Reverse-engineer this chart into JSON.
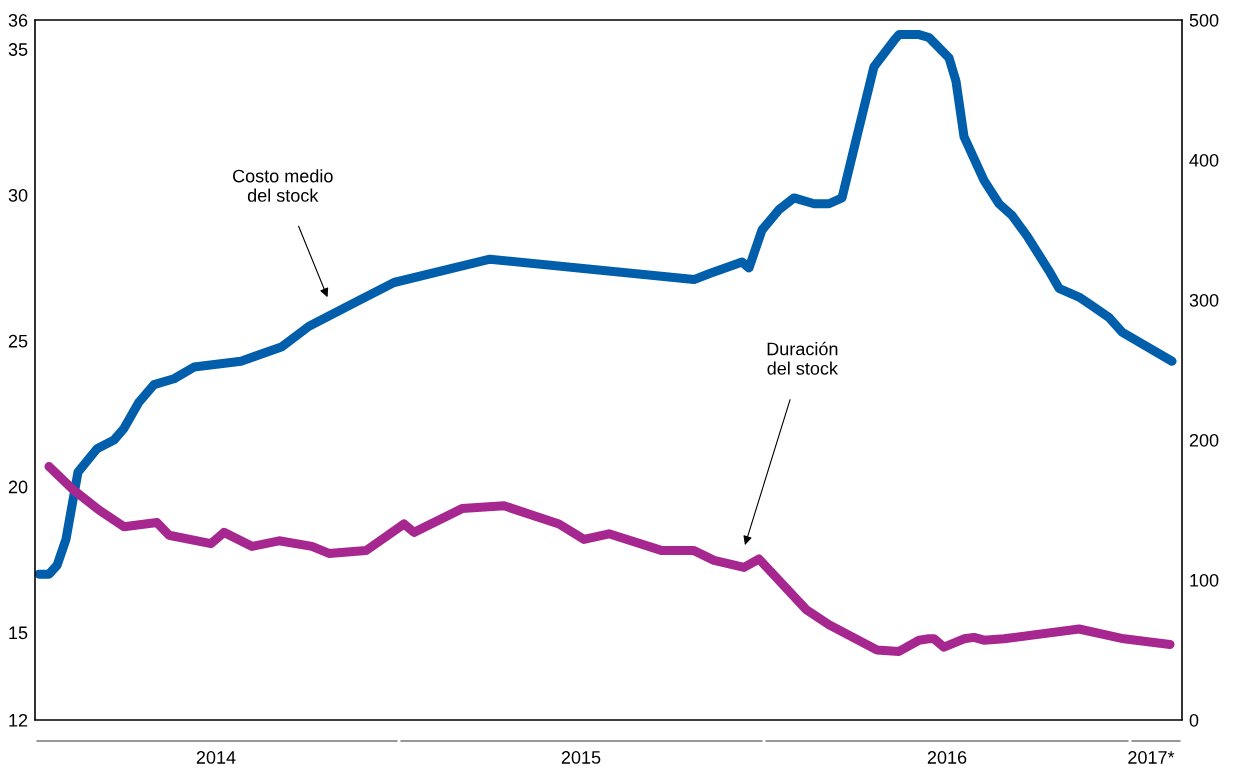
{
  "chart_data": {
    "type": "line",
    "xlim": [
      "2014-01-02",
      "2017-02-22"
    ],
    "xticks": [
      {
        "value": "2014-07-02",
        "label": "2014"
      },
      {
        "value": "2015-07-02",
        "label": "2015"
      },
      {
        "value": "2016-07-02",
        "label": "2016"
      },
      {
        "value": "2017-01-22",
        "label": "2017*"
      }
    ],
    "ylim": [
      12,
      36
    ],
    "yticks": [
      12,
      15,
      20,
      25,
      30,
      35,
      36
    ],
    "y2lim": [
      0,
      500
    ],
    "y2ticks": [
      0,
      100,
      200,
      300,
      400,
      500
    ],
    "grid": false,
    "legend": false,
    "marker": "none",
    "line_style": "solid",
    "series": [
      {
        "color": "#005eaa",
        "x": [
          "2014-01-06",
          "2014-01-16",
          "2014-01-24",
          "2014-02-02",
          "2014-02-14",
          "2014-03-05",
          "2014-03-22",
          "2014-04-01",
          "2014-04-16",
          "2014-05-01",
          "2014-05-21",
          "2014-06-10",
          "2014-07-27",
          "2014-09-06",
          "2014-10-03",
          "2014-11-17",
          "2014-12-27",
          "2015-04-02",
          "2015-10-23",
          "2015-11-07",
          "2015-12-10",
          "2015-12-17",
          "2015-12-30",
          "2016-01-16",
          "2016-01-31",
          "2016-02-20",
          "2016-03-06",
          "2016-03-19",
          "2016-04-05",
          "2016-04-20",
          "2016-05-10",
          "2016-05-15",
          "2016-06-04",
          "2016-06-14",
          "2016-07-04",
          "2016-07-11",
          "2016-07-19",
          "2016-08-08",
          "2016-08-23",
          "2016-09-05",
          "2016-09-20",
          "2016-10-12",
          "2016-10-22",
          "2016-11-11",
          "2016-11-24",
          "2016-12-11",
          "2016-12-24",
          "2017-02-12"
        ],
        "values": [
          17.0,
          17.0,
          17.3,
          18.2,
          20.5,
          21.3,
          21.6,
          22.0,
          22.9,
          23.5,
          23.7,
          24.1,
          24.3,
          24.8,
          25.5,
          26.3,
          27.0,
          27.8,
          27.1,
          27.3,
          27.7,
          27.5,
          28.8,
          29.5,
          29.9,
          29.7,
          29.7,
          29.9,
          32.3,
          34.4,
          35.3,
          35.5,
          35.5,
          35.4,
          34.7,
          33.9,
          32.0,
          30.5,
          29.7,
          29.3,
          28.6,
          27.4,
          26.8,
          26.5,
          26.2,
          25.8,
          25.3,
          24.3
        ]
      },
      {
        "color": "#a6278f",
        "axis": "y2",
        "x": [
          "2014-01-16",
          "2014-02-10",
          "2014-03-07",
          "2014-04-01",
          "2014-05-04",
          "2014-05-16",
          "2014-06-27",
          "2014-07-10",
          "2014-08-07",
          "2014-09-03",
          "2014-10-06",
          "2014-10-23",
          "2014-11-29",
          "2015-01-06",
          "2015-01-16",
          "2015-03-05",
          "2015-04-16",
          "2015-06-10",
          "2015-07-05",
          "2015-07-30",
          "2015-09-21",
          "2015-10-23",
          "2015-11-12",
          "2015-12-12",
          "2015-12-27",
          "2016-02-12",
          "2016-03-06",
          "2016-04-23",
          "2016-05-15",
          "2016-06-04",
          "2016-06-14",
          "2016-06-19",
          "2016-06-29",
          "2016-07-19",
          "2016-07-29",
          "2016-08-08",
          "2016-08-28",
          "2016-11-11",
          "2016-12-26",
          "2017-02-10"
        ],
        "values": [
          181,
          164,
          150,
          138,
          141,
          132,
          126,
          134,
          124,
          128,
          124,
          119,
          121,
          140,
          134,
          151,
          153,
          140,
          129,
          133,
          121,
          121,
          114,
          109,
          115,
          79,
          68,
          50,
          49,
          57,
          58,
          58,
          52,
          58,
          59,
          57,
          58,
          65,
          58,
          54
        ]
      }
    ],
    "annotations": [
      "Costo medio\ndel stock",
      "Duración\ndel stock"
    ]
  }
}
